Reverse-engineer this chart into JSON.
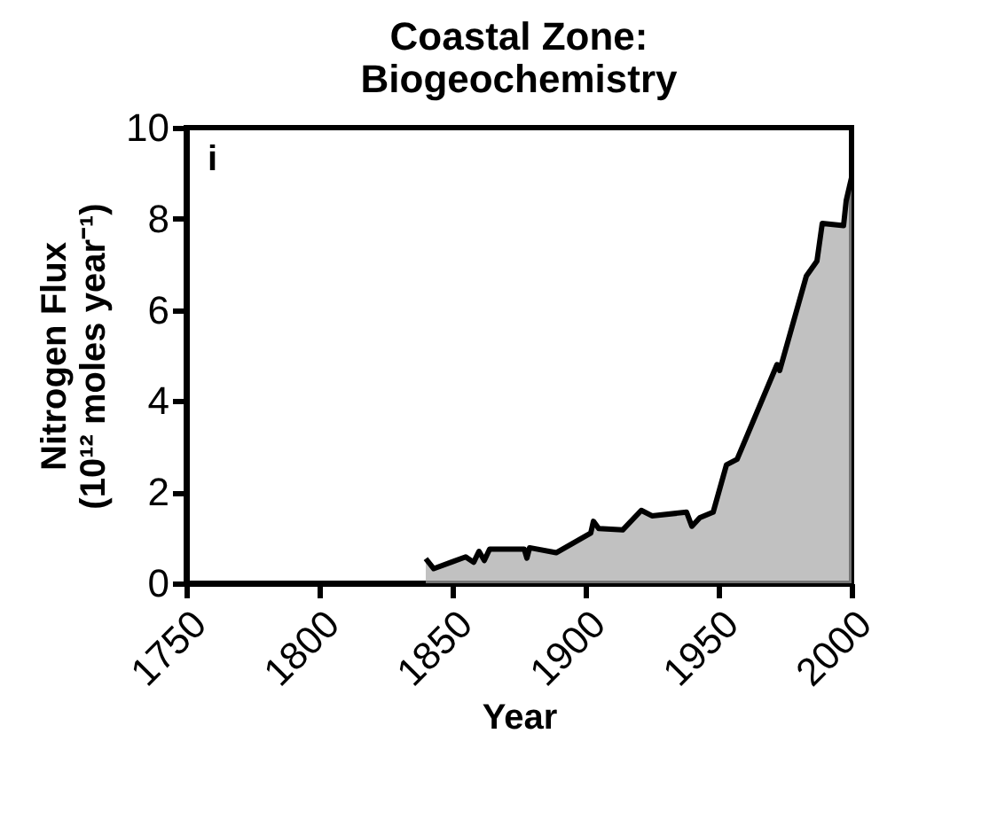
{
  "chart_data": {
    "type": "area",
    "title": [
      "Coastal Zone:",
      "Biogeochemistry"
    ],
    "xlabel": "Year",
    "ylabel": [
      "Nitrogen Flux",
      "(10¹² moles year⁻¹)"
    ],
    "annotations": [
      "i"
    ],
    "xlim": [
      1750,
      2000
    ],
    "xticks": [
      1750,
      1800,
      1850,
      1900,
      1950,
      2000
    ],
    "ylim": [
      0,
      10
    ],
    "yticks": [
      0,
      2,
      4,
      6,
      8,
      10
    ],
    "grid": false,
    "series": [
      {
        "color": "#a6a6a6",
        "x": [
          1840,
          1843,
          1855,
          1858,
          1860,
          1862,
          1864,
          1877,
          1878,
          1879,
          1889,
          1902,
          1903,
          1905,
          1914,
          1921,
          1925,
          1938,
          1940,
          1943,
          1948,
          1953,
          1957,
          1972,
          1973,
          1983,
          1987,
          1989,
          1997,
          1998,
          2000
        ],
        "values": [
          0.54,
          0.32,
          0.58,
          0.46,
          0.7,
          0.5,
          0.75,
          0.75,
          0.55,
          0.78,
          0.67,
          1.1,
          1.36,
          1.2,
          1.17,
          1.6,
          1.48,
          1.56,
          1.25,
          1.44,
          1.56,
          2.6,
          2.72,
          4.8,
          4.67,
          6.74,
          7.07,
          7.9,
          7.85,
          8.4,
          8.9
        ]
      }
    ]
  }
}
